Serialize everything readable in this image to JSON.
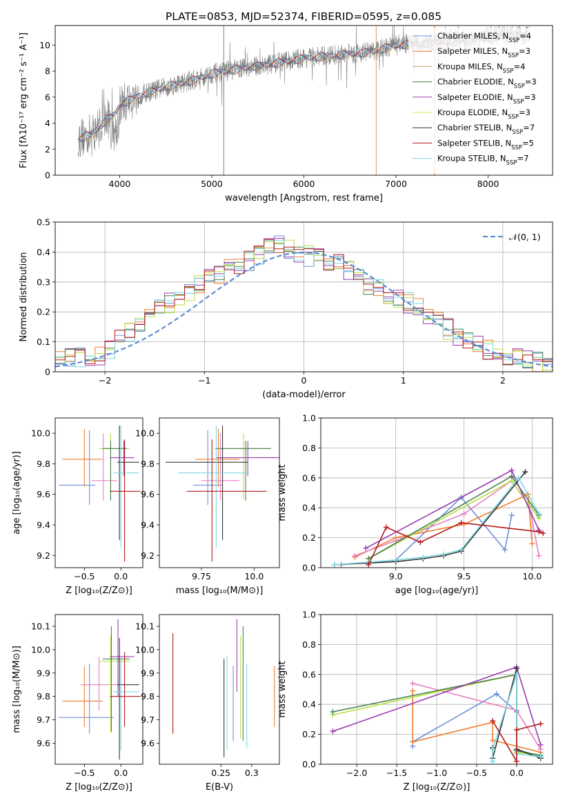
{
  "figure": {
    "title": "PLATE=0853, MJD=52374, FIBERID=0595, z=0.085"
  },
  "colors": {
    "chabrier_miles": "#6a8fd8",
    "salpeter_miles": "#f07d2c",
    "kroupa_miles": "#c8a060",
    "chabrier_elodie": "#4a8050",
    "salpeter_elodie": "#9a3ab0",
    "kroupa_elodie": "#e0e060",
    "chabrier_stelib": "#303030",
    "salpeter_stelib": "#b01818",
    "kroupa_stelib": "#7fd8e0",
    "pink": "#e77fc0",
    "lime": "#b8e040",
    "data": "#808080",
    "gaussian": "#5a8ad6"
  },
  "chart_data": [
    {
      "type": "line",
      "panel": "spectrum",
      "xlabel": "wavelength [Angstrom, rest frame]",
      "ylabel": "Flux [fλ10⁻¹⁷ erg cm⁻² s⁻¹ A⁻¹]",
      "xlim": [
        3300,
        8700
      ],
      "ylim": [
        0,
        11.5
      ],
      "xticks": [
        4000,
        5000,
        6000,
        7000,
        8000
      ],
      "yticks": [
        0,
        2,
        4,
        6,
        8,
        10
      ],
      "legend_position": "right",
      "legend": [
        {
          "label": "Chabrier MILES, N",
          "sub": "SSP",
          "val": "=4",
          "color": "chabrier_miles"
        },
        {
          "label": "Salpeter MILES, N",
          "sub": "SSP",
          "val": "=3",
          "color": "salpeter_miles"
        },
        {
          "label": "Kroupa MILES, N",
          "sub": "SSP",
          "val": "=4",
          "color": "kroupa_miles"
        },
        {
          "label": "Chabrier ELODIE, N",
          "sub": "SSP",
          "val": "=3",
          "color": "chabrier_elodie"
        },
        {
          "label": "Salpeter ELODIE, N",
          "sub": "SSP",
          "val": "=3",
          "color": "salpeter_elodie"
        },
        {
          "label": "Kroupa ELODIE, N",
          "sub": "SSP",
          "val": "=3",
          "color": "kroupa_elodie"
        },
        {
          "label": "Chabrier STELIB, N",
          "sub": "SSP",
          "val": "=7",
          "color": "chabrier_stelib"
        },
        {
          "label": "Salpeter STELIB, N",
          "sub": "SSP",
          "val": "=5",
          "color": "salpeter_stelib"
        },
        {
          "label": "Kroupa STELIB, N",
          "sub": "SSP",
          "val": "=7",
          "color": "kroupa_stelib"
        }
      ],
      "continuum": {
        "x": [
          3550,
          3700,
          3850,
          3950,
          4000,
          4200,
          4500,
          4800,
          5000,
          5300,
          5600,
          6000,
          6300,
          6600,
          6800,
          7000,
          7300,
          7600,
          7900,
          8200,
          8450
        ],
        "y": [
          2.8,
          3.2,
          4.2,
          4.7,
          5.4,
          6.1,
          6.8,
          7.3,
          7.8,
          8.2,
          8.5,
          9.0,
          9.2,
          9.4,
          9.6,
          10.0,
          10.1,
          10.4,
          10.5,
          10.7,
          10.8
        ]
      },
      "spikes": [
        {
          "x": 5130,
          "y": 11.5
        },
        {
          "x": 6785,
          "y": 0
        },
        {
          "x": 7420,
          "y": 0
        }
      ]
    },
    {
      "type": "histogram",
      "panel": "residuals",
      "xlabel": "(data-model)/error",
      "ylabel": "Normed distribution",
      "xlim": [
        -2.5,
        2.5
      ],
      "ylim": [
        0,
        0.5
      ],
      "xticks": [
        -2,
        -1,
        0,
        1,
        2
      ],
      "yticks": [
        0,
        0.1,
        0.2,
        0.3,
        0.4,
        0.5
      ],
      "legend_label": "𝒩(0, 1)",
      "bin_width": 0.1,
      "envelope_x": [
        -2.5,
        -2.0,
        -1.8,
        -1.5,
        -1.2,
        -1.0,
        -0.7,
        -0.5,
        -0.3,
        0.0,
        0.3,
        0.5,
        0.7,
        1.0,
        1.3,
        1.5,
        1.8,
        2.0,
        2.5
      ],
      "envelope_y": [
        0.04,
        0.06,
        0.12,
        0.2,
        0.26,
        0.3,
        0.35,
        0.38,
        0.43,
        0.39,
        0.37,
        0.33,
        0.28,
        0.24,
        0.18,
        0.13,
        0.08,
        0.06,
        0.02
      ]
    },
    {
      "type": "errorbar",
      "panel": "age_vs_Z",
      "xlabel": "Z [log₁₀(Z/Z⊙)]",
      "ylabel": "age  [log₁₀(age/yr)]",
      "xlim": [
        -0.9,
        0.3
      ],
      "ylim": [
        9.12,
        10.1
      ],
      "xticks": [
        -0.5,
        0.0
      ],
      "yticks": [
        9.2,
        9.4,
        9.6,
        9.8,
        10.0
      ],
      "points": [
        {
          "x": -0.85,
          "x2": -0.35,
          "y": 9.66,
          "y1": 9.53,
          "y2": 10.02,
          "color": "chabrier_miles",
          "xc": -0.43
        },
        {
          "x": -0.8,
          "x2": -0.25,
          "y": 9.83,
          "y1": 9.65,
          "y2": 10.03,
          "color": "salpeter_miles",
          "xc": -0.5
        },
        {
          "x": -0.4,
          "x2": -0.05,
          "y": 9.69,
          "y1": 9.56,
          "y2": 10.0,
          "color": "pink",
          "xc": -0.24
        },
        {
          "x": -0.3,
          "x2": 0.12,
          "y": 9.9,
          "y1": 9.57,
          "y2": 10.0,
          "color": "lime",
          "xc": -0.14
        },
        {
          "x": -0.25,
          "x2": 0.08,
          "y": 9.9,
          "y1": 9.56,
          "y2": 9.95,
          "color": "chabrier_elodie",
          "xc": -0.14
        },
        {
          "x": -0.15,
          "x2": 0.18,
          "y": 9.84,
          "y1": 9.72,
          "y2": 9.95,
          "color": "salpeter_elodie",
          "xc": 0.04
        },
        {
          "x": -0.05,
          "x2": 0.25,
          "y": 9.81,
          "y1": 9.3,
          "y2": 10.05,
          "color": "chabrier_stelib",
          "xc": -0.02
        },
        {
          "x": -0.1,
          "x2": 0.25,
          "y": 9.74,
          "y1": 9.25,
          "y2": 10.05,
          "color": "kroupa_stelib",
          "xc": 0.0
        },
        {
          "x": -0.15,
          "x2": 0.27,
          "y": 9.62,
          "y1": 9.16,
          "y2": 9.96,
          "color": "salpeter_stelib",
          "xc": 0.05
        }
      ]
    },
    {
      "type": "errorbar",
      "panel": "age_vs_mass",
      "xlabel": "mass [log₁₀(M/M⊙)]",
      "ylabel": "",
      "xlim": [
        9.55,
        10.12
      ],
      "ylim": [
        9.12,
        10.1
      ],
      "xticks": [
        9.75,
        10.0
      ],
      "yticks": [
        9.2,
        9.4,
        9.6,
        9.8,
        10.0
      ],
      "points": [
        {
          "x": 9.71,
          "x2": 9.85,
          "y": 9.66,
          "y1": 9.53,
          "y2": 10.02,
          "color": "chabrier_miles",
          "xc": 9.78
        },
        {
          "x": 9.72,
          "x2": 9.93,
          "y": 9.83,
          "y1": 9.65,
          "y2": 10.03,
          "color": "salpeter_miles",
          "xc": 9.83
        },
        {
          "x": 9.75,
          "x2": 9.93,
          "y": 9.69,
          "y1": 9.56,
          "y2": 10.0,
          "color": "pink",
          "xc": 9.84
        },
        {
          "x": 9.81,
          "x2": 10.08,
          "y": 9.9,
          "y1": 9.57,
          "y2": 10.0,
          "color": "lime",
          "xc": 9.95
        },
        {
          "x": 9.82,
          "x2": 10.08,
          "y": 9.9,
          "y1": 9.56,
          "y2": 9.95,
          "color": "chabrier_elodie",
          "xc": 9.96
        },
        {
          "x": 9.82,
          "x2": 10.12,
          "y": 9.84,
          "y1": 9.72,
          "y2": 9.95,
          "color": "salpeter_elodie",
          "xc": 9.97
        },
        {
          "x": 9.58,
          "x2": 9.97,
          "y": 9.81,
          "y1": 9.3,
          "y2": 10.05,
          "color": "chabrier_stelib",
          "xc": 9.85
        },
        {
          "x": 9.64,
          "x2": 9.97,
          "y": 9.74,
          "y1": 9.25,
          "y2": 10.05,
          "color": "kroupa_stelib",
          "xc": 9.82
        },
        {
          "x": 9.68,
          "x2": 10.06,
          "y": 9.62,
          "y1": 9.16,
          "y2": 9.96,
          "color": "salpeter_stelib",
          "xc": 9.8
        }
      ]
    },
    {
      "type": "line",
      "panel": "mass_weight_vs_age",
      "xlabel": "age  [log₁₀(age/yr)]",
      "ylabel": "mass weight",
      "xlim": [
        8.45,
        10.15
      ],
      "ylim": [
        0,
        1.0
      ],
      "xticks": [
        9.0,
        9.5,
        10.0
      ],
      "yticks": [
        0.0,
        0.2,
        0.4,
        0.6,
        0.8,
        1.0
      ],
      "series": [
        {
          "color": "chabrier_miles",
          "x": [
            8.6,
            9.0,
            9.48,
            9.8,
            9.85
          ],
          "y": [
            0.02,
            0.05,
            0.47,
            0.12,
            0.35
          ]
        },
        {
          "color": "salpeter_miles",
          "x": [
            8.7,
            9.0,
            9.5,
            9.97,
            10.0
          ],
          "y": [
            0.07,
            0.2,
            0.29,
            0.49,
            0.16
          ]
        },
        {
          "color": "pink",
          "x": [
            8.7,
            9.0,
            9.5,
            9.85,
            9.98,
            10.05
          ],
          "y": [
            0.08,
            0.18,
            0.36,
            0.58,
            0.41,
            0.08
          ]
        },
        {
          "color": "lime",
          "x": [
            8.8,
            9.85,
            10.05
          ],
          "y": [
            0.06,
            0.58,
            0.33
          ]
        },
        {
          "color": "chabrier_elodie",
          "x": [
            8.8,
            9.85,
            10.05
          ],
          "y": [
            0.06,
            0.61,
            0.35
          ]
        },
        {
          "color": "salpeter_elodie",
          "x": [
            8.78,
            9.85,
            10.05
          ],
          "y": [
            0.13,
            0.65,
            0.25
          ]
        },
        {
          "color": "chabrier_stelib",
          "x": [
            8.55,
            9.0,
            9.2,
            9.35,
            9.48,
            9.95
          ],
          "y": [
            0.02,
            0.04,
            0.06,
            0.08,
            0.11,
            0.64
          ]
        },
        {
          "color": "kroupa_stelib",
          "x": [
            8.55,
            9.0,
            9.2,
            9.35,
            9.48,
            9.9,
            10.05
          ],
          "y": [
            0.02,
            0.05,
            0.07,
            0.09,
            0.12,
            0.6,
            0.36
          ]
        },
        {
          "color": "salpeter_stelib",
          "x": [
            8.8,
            8.93,
            9.18,
            9.48,
            10.05,
            10.08
          ],
          "y": [
            0.02,
            0.27,
            0.17,
            0.3,
            0.24,
            0.23
          ]
        }
      ]
    },
    {
      "type": "errorbar",
      "panel": "mass_vs_Z",
      "xlabel": "Z [log₁₀(Z/Z⊙)]",
      "ylabel": "mass [log₁₀(M/M⊙)]",
      "xlim": [
        -0.9,
        0.3
      ],
      "ylim": [
        9.51,
        10.15
      ],
      "xticks": [
        -0.5,
        0.0
      ],
      "yticks": [
        9.6,
        9.7,
        9.8,
        9.9,
        10.0,
        10.1
      ],
      "points": [
        {
          "x": -0.85,
          "x2": -0.1,
          "y": 9.71,
          "y1": 9.64,
          "y2": 9.94,
          "color": "chabrier_miles",
          "xc": -0.43
        },
        {
          "x": -0.8,
          "x2": -0.25,
          "y": 9.78,
          "y1": 9.67,
          "y2": 9.93,
          "color": "salpeter_miles",
          "xc": -0.5
        },
        {
          "x": -0.55,
          "x2": -0.05,
          "y": 9.85,
          "y1": 9.74,
          "y2": 9.97,
          "color": "pink",
          "xc": -0.3
        },
        {
          "x": -0.3,
          "x2": 0.12,
          "y": 9.95,
          "y1": 9.64,
          "y2": 10.06,
          "color": "lime",
          "xc": -0.14
        },
        {
          "x": -0.25,
          "x2": 0.12,
          "y": 9.96,
          "y1": 9.65,
          "y2": 10.1,
          "color": "chabrier_elodie",
          "xc": -0.13
        },
        {
          "x": -0.15,
          "x2": 0.18,
          "y": 9.97,
          "y1": 9.8,
          "y2": 10.13,
          "color": "salpeter_elodie",
          "xc": -0.04
        },
        {
          "x": -0.05,
          "x2": 0.25,
          "y": 9.85,
          "y1": 9.53,
          "y2": 10.05,
          "color": "chabrier_stelib",
          "xc": -0.02
        },
        {
          "x": -0.1,
          "x2": 0.25,
          "y": 9.82,
          "y1": 9.57,
          "y2": 9.96,
          "color": "kroupa_stelib",
          "xc": 0.0
        },
        {
          "x": -0.15,
          "x2": 0.27,
          "y": 9.8,
          "y1": 9.67,
          "y2": 9.99,
          "color": "salpeter_stelib",
          "xc": 0.05
        }
      ]
    },
    {
      "type": "errorbar",
      "panel": "mass_vs_ebv",
      "xlabel": "E(B-V)",
      "ylabel": "",
      "xlim": [
        0.15,
        0.345
      ],
      "ylim": [
        9.51,
        10.15
      ],
      "xticks": [
        0.25,
        0.3
      ],
      "yticks": [
        9.6,
        9.7,
        9.8,
        9.9,
        10.0,
        10.1
      ],
      "points": [
        {
          "xc": 0.172,
          "y1": 9.64,
          "y2": 10.07,
          "color": "salpeter_stelib"
        },
        {
          "xc": 0.255,
          "y1": 9.54,
          "y2": 9.96,
          "color": "chabrier_stelib"
        },
        {
          "xc": 0.26,
          "y1": 9.57,
          "y2": 9.97,
          "color": "kroupa_stelib"
        },
        {
          "xc": 0.27,
          "y1": 9.61,
          "y2": 9.93,
          "color": "chabrier_miles"
        },
        {
          "xc": 0.276,
          "y1": 9.82,
          "y2": 10.13,
          "color": "salpeter_elodie"
        },
        {
          "xc": 0.282,
          "y1": 9.62,
          "y2": 10.06,
          "color": "lime"
        },
        {
          "xc": 0.286,
          "y1": 9.61,
          "y2": 10.1,
          "color": "chabrier_elodie"
        },
        {
          "xc": 0.292,
          "y1": 9.58,
          "y2": 9.94,
          "color": "kroupa_stelib"
        },
        {
          "xc": 0.337,
          "y1": 9.67,
          "y2": 9.93,
          "color": "salpeter_miles"
        }
      ]
    },
    {
      "type": "line",
      "panel": "mass_weight_vs_Z",
      "xlabel": "Z [log₁₀(Z/Z⊙)]",
      "ylabel": "mass weight",
      "xlim": [
        -2.45,
        0.45
      ],
      "ylim": [
        0,
        1.0
      ],
      "xticks": [
        -2.0,
        -1.5,
        -1.0,
        -0.5,
        0.0
      ],
      "yticks": [
        0.0,
        0.2,
        0.4,
        0.6,
        0.8,
        1.0
      ],
      "series": [
        {
          "color": "chabrier_miles",
          "x": [
            -1.3,
            -1.3,
            -0.25,
            0.0,
            0.0,
            0.3
          ],
          "y": [
            0.12,
            0.15,
            0.47,
            0.35,
            0.1,
            0.05
          ]
        },
        {
          "color": "salpeter_miles",
          "x": [
            -1.3,
            -1.3,
            -0.3,
            -0.3,
            0.3
          ],
          "y": [
            0.49,
            0.15,
            0.28,
            0.16,
            0.08
          ]
        },
        {
          "color": "pink",
          "x": [
            -1.3,
            0.0,
            0.3
          ],
          "y": [
            0.54,
            0.36,
            0.1
          ]
        },
        {
          "color": "lime",
          "x": [
            -2.3,
            0.0,
            0.0,
            0.3
          ],
          "y": [
            0.33,
            0.6,
            0.08,
            0.06
          ]
        },
        {
          "color": "chabrier_elodie",
          "x": [
            -2.3,
            0.0,
            0.0,
            0.3
          ],
          "y": [
            0.35,
            0.6,
            0.09,
            0.06
          ]
        },
        {
          "color": "salpeter_elodie",
          "x": [
            -2.3,
            0.0,
            0.3
          ],
          "y": [
            0.22,
            0.65,
            0.13
          ]
        },
        {
          "color": "chabrier_stelib",
          "x": [
            -0.3,
            -0.3,
            0.0,
            0.0,
            0.3
          ],
          "y": [
            0.11,
            0.04,
            0.64,
            0.1,
            0.04
          ]
        },
        {
          "color": "kroupa_stelib",
          "x": [
            -0.3,
            -0.3,
            0.0,
            0.0,
            0.3
          ],
          "y": [
            0.02,
            0.1,
            0.6,
            0.07,
            0.05
          ]
        },
        {
          "color": "salpeter_stelib",
          "x": [
            -0.3,
            0.0,
            0.0,
            0.3
          ],
          "y": [
            0.29,
            0.02,
            0.23,
            0.27
          ]
        }
      ]
    }
  ]
}
